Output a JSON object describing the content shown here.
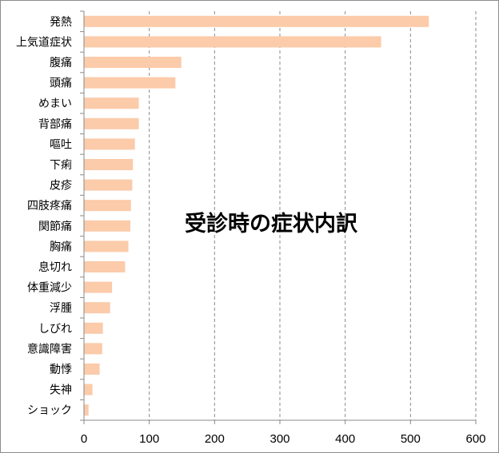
{
  "chart_data": {
    "type": "bar",
    "orientation": "horizontal",
    "title": "受診時の症状内訳",
    "xlabel": "",
    "ylabel": "",
    "xlim": [
      0,
      600
    ],
    "x_ticks": [
      "0",
      "100",
      "200",
      "300",
      "400",
      "500",
      "600"
    ],
    "grid": "vertical dashed",
    "legend": "none",
    "bar_color": "#FBCBAA",
    "categories": [
      "発熱",
      "上気道症状",
      "腹痛",
      "頭痛",
      "めまい",
      "背部痛",
      "嘔吐",
      "下痢",
      "皮疹",
      "四肢疼痛",
      "関節痛",
      "胸痛",
      "息切れ",
      "体重減少",
      "浮腫",
      "しびれ",
      "意識障害",
      "動悸",
      "失神",
      "ショック"
    ],
    "values": [
      528,
      455,
      149,
      140,
      84,
      84,
      78,
      75,
      74,
      72,
      71,
      68,
      63,
      43,
      40,
      29,
      28,
      24,
      13,
      7
    ]
  }
}
